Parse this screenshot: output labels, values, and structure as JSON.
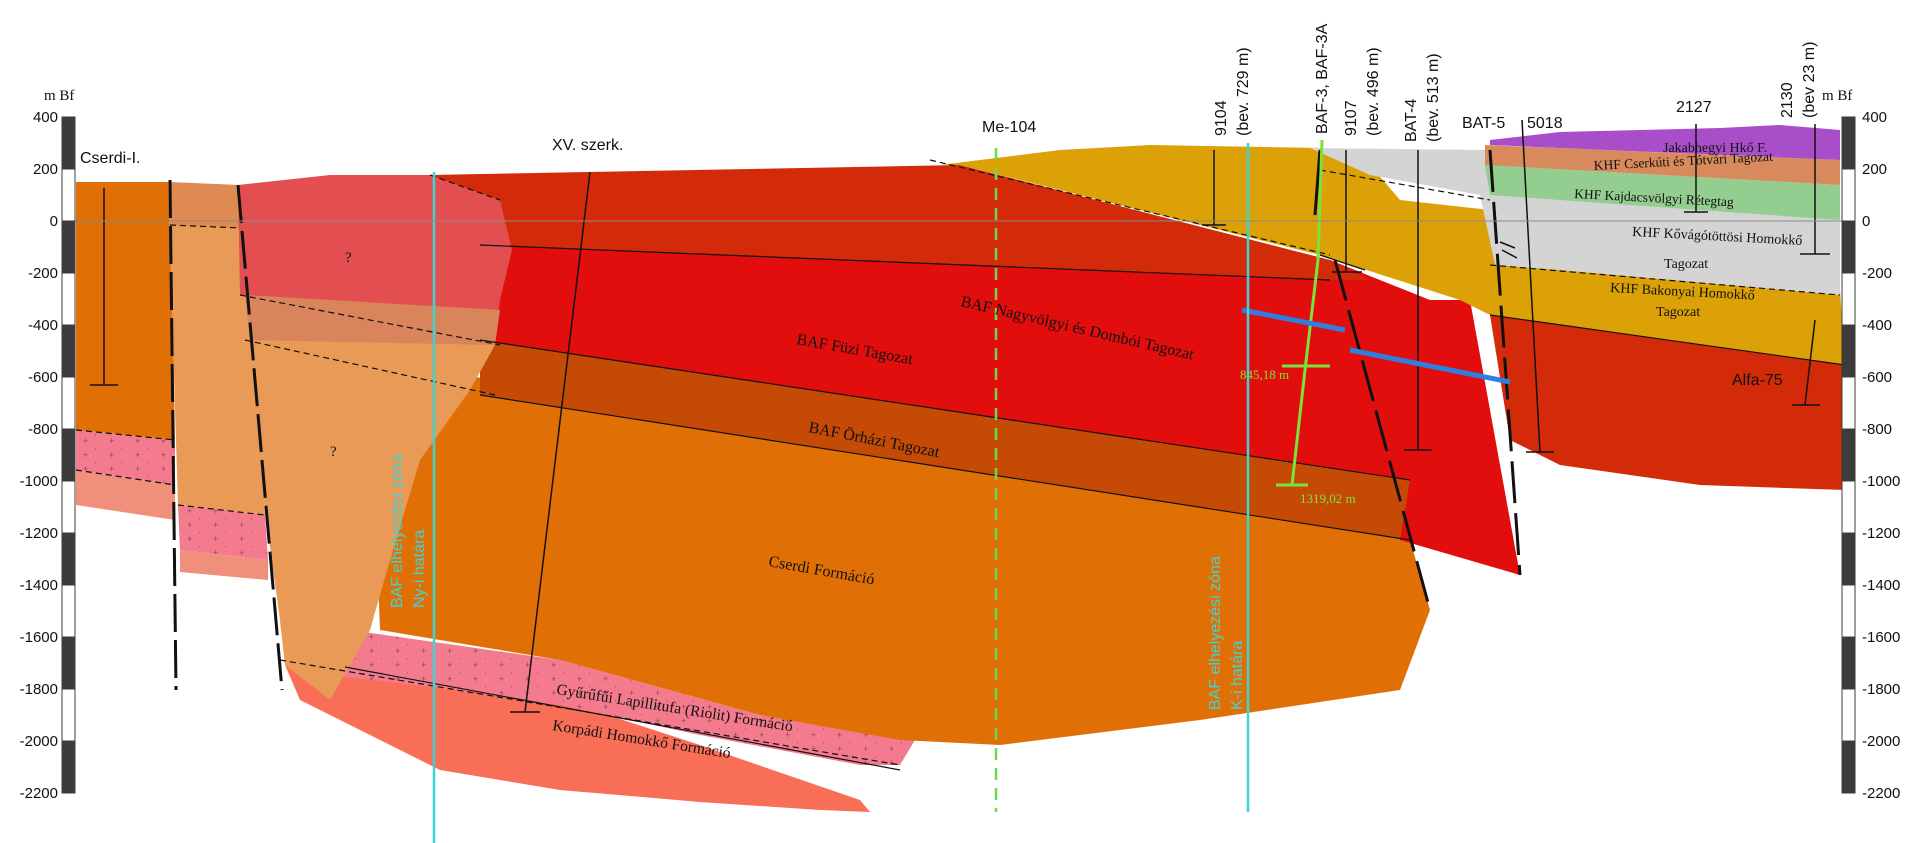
{
  "axes": {
    "unit": "m Bf",
    "ticks": [
      "400",
      "200",
      "0",
      "-200",
      "-400",
      "-600",
      "-800",
      "-1000",
      "-1200",
      "-1400",
      "-1600",
      "-1800",
      "-2000",
      "-2200"
    ]
  },
  "wells": {
    "cserdi": "Cserdi-I.",
    "xv": "XV. szerk.",
    "me104": "Me-104",
    "w9104": "9104",
    "w9104_bev": "(bev. 729 m)",
    "baf3": "BAF-3, BAF-3A",
    "w9107": "9107",
    "w9107_bev": "(bev. 496 m)",
    "bat4": "BAT-4",
    "bat4_bev": "(bev. 513 m)",
    "bat5": "BAT-5",
    "w5018": "5018",
    "w2127": "2127",
    "w2130": "2130",
    "w2130_bev": "(bev 23 m)",
    "alfa75": "Alfa-75"
  },
  "units": {
    "jakab": "Jakabhegyi Hkő F.",
    "cserkuti": "KHF Cserkúti és Tótvári Tagozat",
    "kajdacs": "KHF Kajdacsvölgyi Rétegtag",
    "kovago1": "KHF Kővágótöttösi Homokkő",
    "kovago2": "Tagozat",
    "bakony1": "KHF Bakonyai Homokkő",
    "bakony2": "Tagozat",
    "nagyvolgyi": "BAF Nagyvölgyi és Dombói Tagozat",
    "fuzi": "BAF Füzi Tagozat",
    "orhazi": "BAF Örházi Tagozat",
    "cserdi_f": "Cserdi Formáció",
    "gyurufui": "Gyűrűfűi Lapillitufa (Riolit) Formáció",
    "korpadi": "Korpádi Homokkő Formáció",
    "q1": "?",
    "q2": "?"
  },
  "zones": {
    "west1": "BAF elhelyezési zóna",
    "west2": "Ny-i határa",
    "east1": "BAF elhelyezési zóna",
    "east2": "K-i határa"
  },
  "depths": {
    "d1": "845,18 m",
    "d2": "1319,02 m"
  },
  "colors": {
    "baf_red": "#e20d0d",
    "baf_dark": "#d32a0a",
    "orhazi": "#c44a05",
    "cserdi": "#e07006",
    "orange_light": "#e89a56",
    "pink": "#f47a8e",
    "salmon": "#f86e56",
    "khf_yellow": "#dca106",
    "gray": "#d4d4d4",
    "green": "#93cd8f",
    "brown": "#d98a5d",
    "purple": "#a94ec9",
    "cyan": "#3fd4d4",
    "lime": "#7ce33a",
    "blue": "#2f7fe0"
  }
}
